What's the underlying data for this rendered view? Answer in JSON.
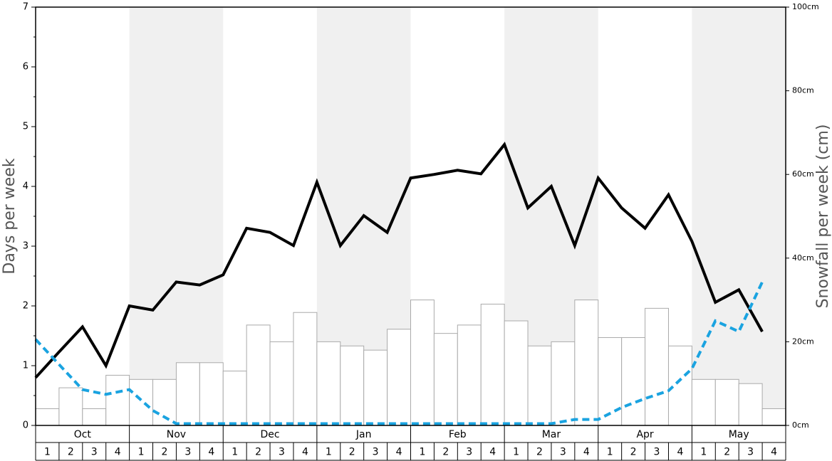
{
  "chart_data": {
    "type": "bar_line",
    "ylabel": "Days per week",
    "y2label": "Snowfall per week (cm)",
    "months": [
      "Oct",
      "Nov",
      "Dec",
      "Jan",
      "Feb",
      "Mar",
      "Apr",
      "May"
    ],
    "categories": [
      "1",
      "2",
      "3",
      "4",
      "1",
      "2",
      "3",
      "4",
      "1",
      "2",
      "3",
      "4",
      "1",
      "2",
      "3",
      "4",
      "1",
      "2",
      "3",
      "4",
      "1",
      "2",
      "3",
      "4",
      "1",
      "2",
      "3",
      "4",
      "1",
      "2",
      "3",
      "4"
    ],
    "ylim": [
      0,
      7
    ],
    "yticks": [
      0,
      1,
      2,
      3,
      4,
      5,
      6,
      7
    ],
    "y2lim": [
      0,
      100
    ],
    "y2ticks": [
      {
        "value": 0,
        "label": "0cm"
      },
      {
        "value": 20,
        "label": "20cm"
      },
      {
        "value": 40,
        "label": "40cm"
      },
      {
        "value": 60,
        "label": "60cm"
      },
      {
        "value": 80,
        "label": "80cm"
      },
      {
        "value": 100,
        "label": "100cm"
      }
    ],
    "series": [
      {
        "kind": "bar",
        "axis": "y2",
        "color": "#aaaaaa",
        "values": [
          4,
          9,
          4,
          12,
          11,
          11,
          15,
          15,
          13,
          24,
          20,
          27,
          20,
          19,
          18,
          23,
          30,
          22,
          24,
          29,
          25,
          19,
          20,
          30,
          21,
          21,
          28,
          19,
          11,
          11,
          10,
          4
        ]
      },
      {
        "kind": "line",
        "color": "#000000",
        "values": [
          0.8,
          1.23,
          1.65,
          1.0,
          2.0,
          1.93,
          2.4,
          2.35,
          2.52,
          3.3,
          3.23,
          3.01,
          4.07,
          3.01,
          3.51,
          3.23,
          4.14,
          4.2,
          4.27,
          4.21,
          4.7,
          3.64,
          4.0,
          3.01,
          4.14,
          3.64,
          3.3,
          3.86,
          3.08,
          2.06,
          2.27,
          1.57
        ]
      },
      {
        "kind": "dashed",
        "color": "#1aa3e0",
        "values": [
          1.44,
          1.02,
          0.6,
          0.52,
          0.6,
          0.25,
          0.03,
          0.03,
          0.03,
          0.03,
          0.03,
          0.03,
          0.03,
          0.03,
          0.03,
          0.03,
          0.03,
          0.03,
          0.03,
          0.03,
          0.03,
          0.03,
          0.03,
          0.1,
          0.1,
          0.3,
          0.45,
          0.58,
          0.95,
          1.75,
          1.57,
          2.4
        ]
      }
    ]
  }
}
